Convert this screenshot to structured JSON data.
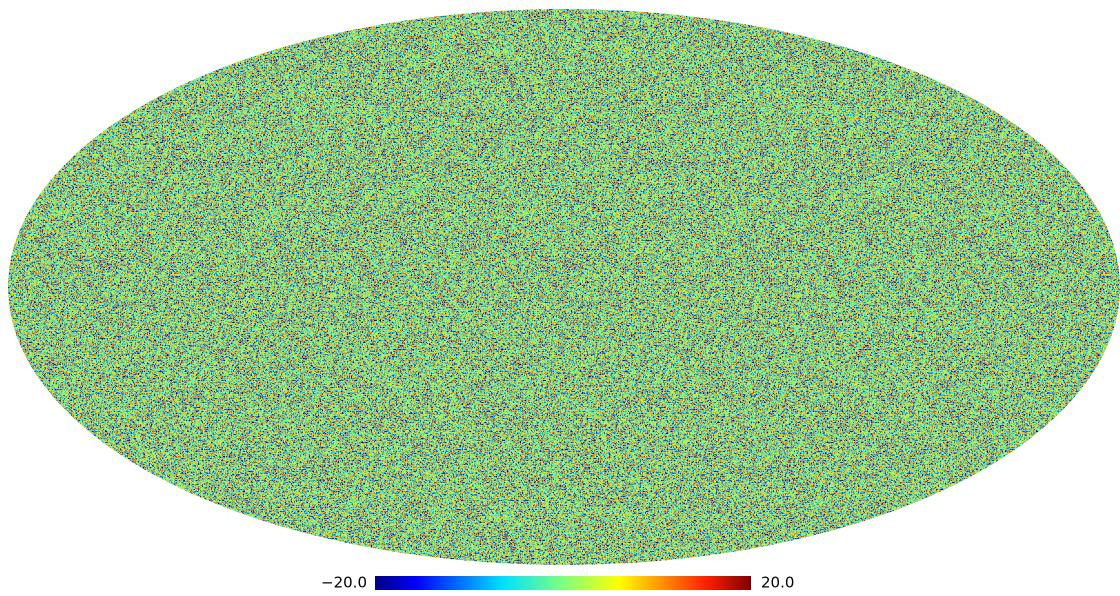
{
  "colorbar": {
    "min": {
      "value": -20,
      "label": "−20.0"
    },
    "max": {
      "value": 20,
      "label": "20.0"
    }
  }
}
